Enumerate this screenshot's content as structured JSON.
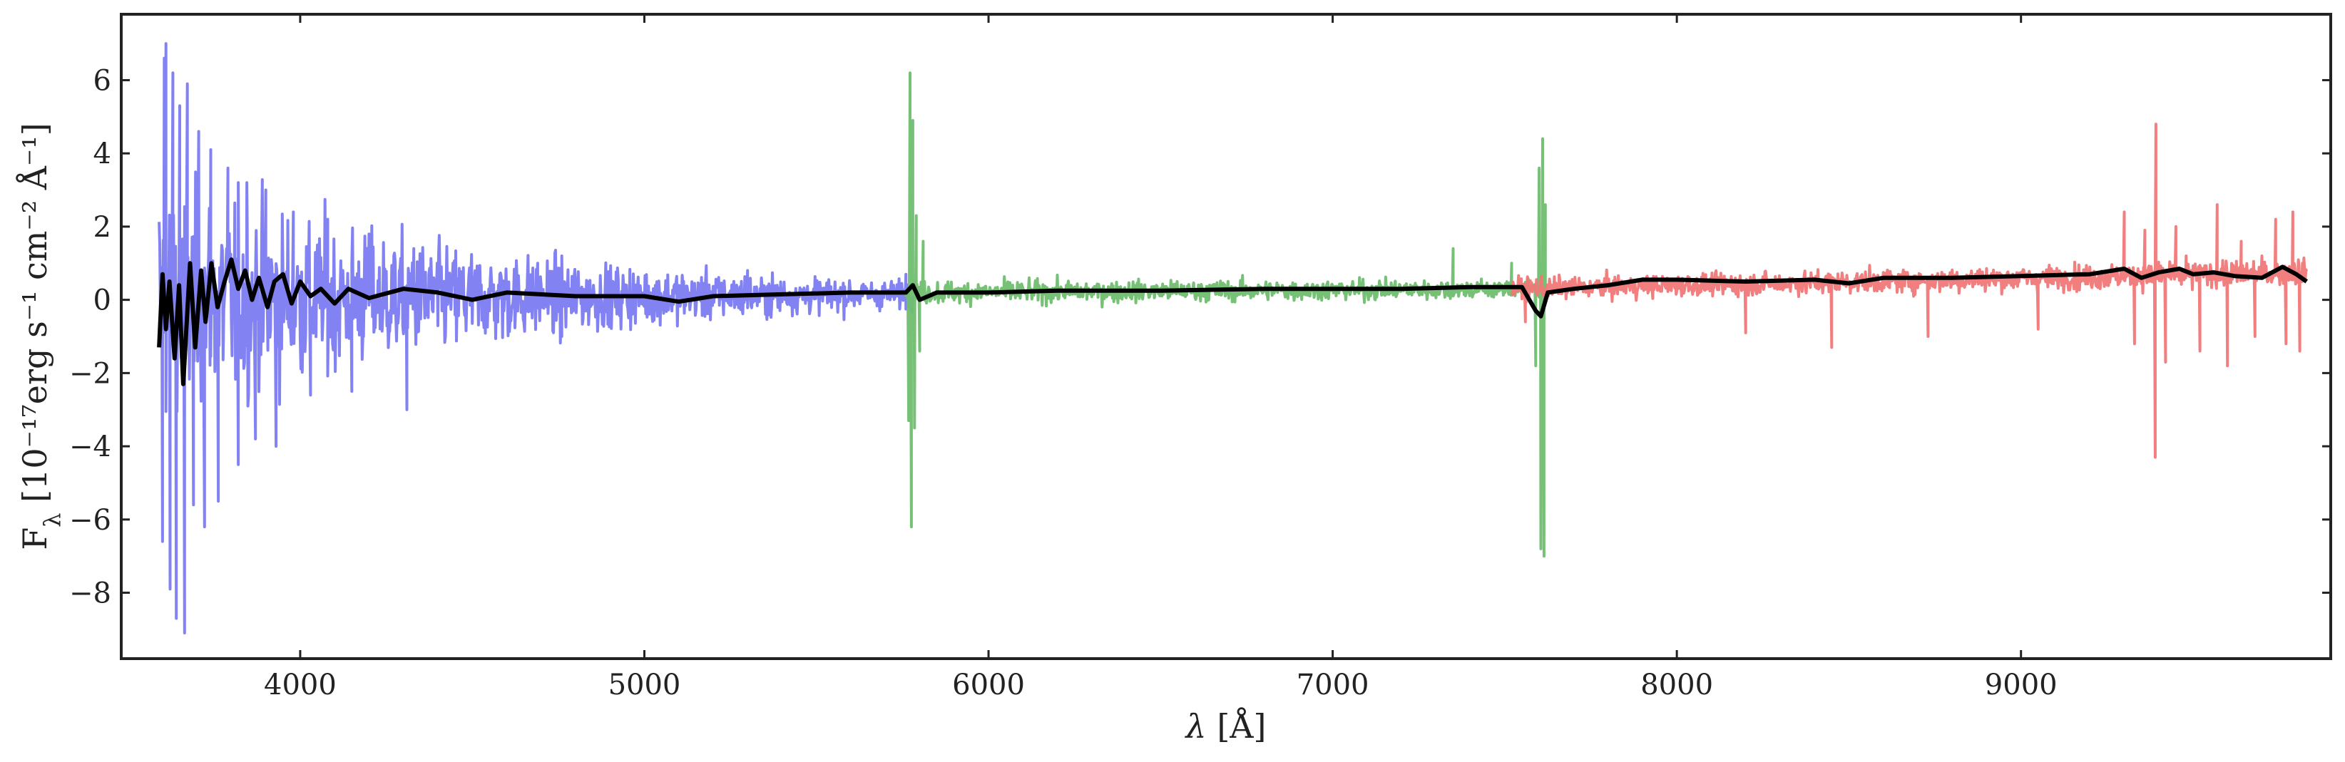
{
  "chart_data": {
    "type": "line",
    "xlabel_symbol": "λ",
    "xlabel_unit": "[Å]",
    "ylabel_base": "F",
    "ylabel_sub": "λ",
    "ylabel_units": "[10⁻¹⁷erg s⁻¹ cm⁻² Å⁻¹]",
    "xlim": [
      3480,
      9900
    ],
    "ylim": [
      -9.8,
      7.8
    ],
    "xticks": [
      4000,
      5000,
      6000,
      7000,
      8000,
      9000
    ],
    "yticks": [
      -8,
      -6,
      -4,
      -2,
      0,
      2,
      4,
      6
    ],
    "grid": false,
    "series": [
      {
        "arm": "blue",
        "color": "#7b7bf2",
        "x_range": [
          3590,
          5780
        ],
        "noise_start": 3.2,
        "noise_end": 0.35,
        "baseline": [
          [
            3590,
            0.0
          ],
          [
            5780,
            0.15
          ]
        ],
        "spikes": [
          [
            3600,
            -6.6
          ],
          [
            3605,
            6.6
          ],
          [
            3610,
            7.0
          ],
          [
            3622,
            -7.9
          ],
          [
            3630,
            6.2
          ],
          [
            3640,
            -8.7
          ],
          [
            3650,
            5.3
          ],
          [
            3664,
            -9.1
          ],
          [
            3672,
            5.9
          ],
          [
            3690,
            -5.6
          ],
          [
            3705,
            4.6
          ],
          [
            3722,
            -6.2
          ],
          [
            3740,
            4.1
          ],
          [
            3762,
            -5.5
          ],
          [
            3790,
            3.6
          ],
          [
            3820,
            -4.5
          ],
          [
            3845,
            3.2
          ],
          [
            3870,
            -3.8
          ],
          [
            3900,
            3.0
          ],
          [
            3930,
            -4.0
          ],
          [
            3980,
            2.4
          ],
          [
            4030,
            -2.6
          ],
          [
            4080,
            2.2
          ],
          [
            4150,
            -2.5
          ],
          [
            4200,
            1.8
          ],
          [
            4310,
            -3.0
          ],
          [
            4330,
            1.4
          ],
          [
            4690,
            1.0
          ],
          [
            4760,
            -1.0
          ],
          [
            5300,
            0.8
          ],
          [
            5760,
            0.7
          ]
        ]
      },
      {
        "arm": "green",
        "color": "#6fbe6f",
        "x_range": [
          5760,
          7620
        ],
        "noise_start": 0.3,
        "noise_end": 0.25,
        "baseline": [
          [
            5760,
            0.2
          ],
          [
            7620,
            0.3
          ]
        ],
        "spikes": [
          [
            5768,
            -3.3
          ],
          [
            5772,
            6.2
          ],
          [
            5776,
            -6.2
          ],
          [
            5780,
            4.9
          ],
          [
            5785,
            -3.5
          ],
          [
            5790,
            2.3
          ],
          [
            5800,
            -1.4
          ],
          [
            5810,
            1.6
          ],
          [
            7350,
            1.4
          ],
          [
            7520,
            1.0
          ],
          [
            7590,
            -1.8
          ],
          [
            7600,
            3.6
          ],
          [
            7605,
            -6.8
          ],
          [
            7610,
            4.4
          ],
          [
            7614,
            -7.0
          ],
          [
            7618,
            2.6
          ]
        ]
      },
      {
        "arm": "red",
        "color": "#f07878",
        "x_range": [
          7520,
          9830
        ],
        "noise_start": 0.28,
        "noise_end": 0.35,
        "baseline": [
          [
            7520,
            0.3
          ],
          [
            9830,
            0.75
          ]
        ],
        "spikes": [
          [
            7560,
            -0.6
          ],
          [
            8200,
            -0.9
          ],
          [
            8450,
            -1.3
          ],
          [
            8730,
            -1.0
          ],
          [
            9050,
            -0.8
          ],
          [
            9300,
            2.4
          ],
          [
            9330,
            -1.2
          ],
          [
            9360,
            1.9
          ],
          [
            9390,
            -4.3
          ],
          [
            9392,
            4.8
          ],
          [
            9420,
            -1.7
          ],
          [
            9450,
            2.0
          ],
          [
            9480,
            1.2
          ],
          [
            9520,
            -1.4
          ],
          [
            9570,
            2.6
          ],
          [
            9600,
            -1.8
          ],
          [
            9640,
            1.6
          ],
          [
            9680,
            -1.0
          ],
          [
            9740,
            2.2
          ],
          [
            9770,
            -1.2
          ],
          [
            9790,
            2.4
          ],
          [
            9810,
            -1.4
          ]
        ]
      },
      {
        "arm": "smoothed",
        "color": "#000000",
        "x_range": [
          3590,
          9830
        ],
        "points": [
          [
            3590,
            -1.3
          ],
          [
            3600,
            0.7
          ],
          [
            3610,
            -0.8
          ],
          [
            3620,
            0.5
          ],
          [
            3635,
            -1.6
          ],
          [
            3648,
            0.4
          ],
          [
            3660,
            -2.3
          ],
          [
            3680,
            1.0
          ],
          [
            3695,
            -1.3
          ],
          [
            3712,
            0.8
          ],
          [
            3725,
            -0.6
          ],
          [
            3742,
            1.0
          ],
          [
            3760,
            -0.2
          ],
          [
            3780,
            0.5
          ],
          [
            3800,
            1.1
          ],
          [
            3820,
            0.3
          ],
          [
            3840,
            0.8
          ],
          [
            3860,
            0.0
          ],
          [
            3880,
            0.6
          ],
          [
            3905,
            -0.2
          ],
          [
            3925,
            0.5
          ],
          [
            3950,
            0.7
          ],
          [
            3975,
            -0.1
          ],
          [
            4000,
            0.5
          ],
          [
            4030,
            0.1
          ],
          [
            4060,
            0.3
          ],
          [
            4100,
            -0.1
          ],
          [
            4140,
            0.3
          ],
          [
            4200,
            0.05
          ],
          [
            4300,
            0.3
          ],
          [
            4400,
            0.2
          ],
          [
            4500,
            0.0
          ],
          [
            4600,
            0.2
          ],
          [
            4800,
            0.1
          ],
          [
            5000,
            0.1
          ],
          [
            5100,
            -0.05
          ],
          [
            5200,
            0.1
          ],
          [
            5400,
            0.15
          ],
          [
            5600,
            0.2
          ],
          [
            5760,
            0.2
          ],
          [
            5780,
            0.4
          ],
          [
            5800,
            0.0
          ],
          [
            5850,
            0.2
          ],
          [
            6000,
            0.2
          ],
          [
            6200,
            0.25
          ],
          [
            6500,
            0.25
          ],
          [
            6800,
            0.3
          ],
          [
            7000,
            0.3
          ],
          [
            7200,
            0.3
          ],
          [
            7400,
            0.35
          ],
          [
            7550,
            0.35
          ],
          [
            7590,
            -0.3
          ],
          [
            7605,
            -0.45
          ],
          [
            7625,
            0.2
          ],
          [
            7700,
            0.3
          ],
          [
            7800,
            0.4
          ],
          [
            7900,
            0.55
          ],
          [
            8000,
            0.55
          ],
          [
            8200,
            0.5
          ],
          [
            8400,
            0.55
          ],
          [
            8500,
            0.45
          ],
          [
            8600,
            0.6
          ],
          [
            8800,
            0.6
          ],
          [
            9000,
            0.65
          ],
          [
            9200,
            0.7
          ],
          [
            9300,
            0.85
          ],
          [
            9350,
            0.6
          ],
          [
            9400,
            0.75
          ],
          [
            9460,
            0.85
          ],
          [
            9500,
            0.7
          ],
          [
            9560,
            0.75
          ],
          [
            9620,
            0.65
          ],
          [
            9700,
            0.6
          ],
          [
            9760,
            0.9
          ],
          [
            9800,
            0.7
          ],
          [
            9830,
            0.5
          ]
        ]
      }
    ]
  }
}
